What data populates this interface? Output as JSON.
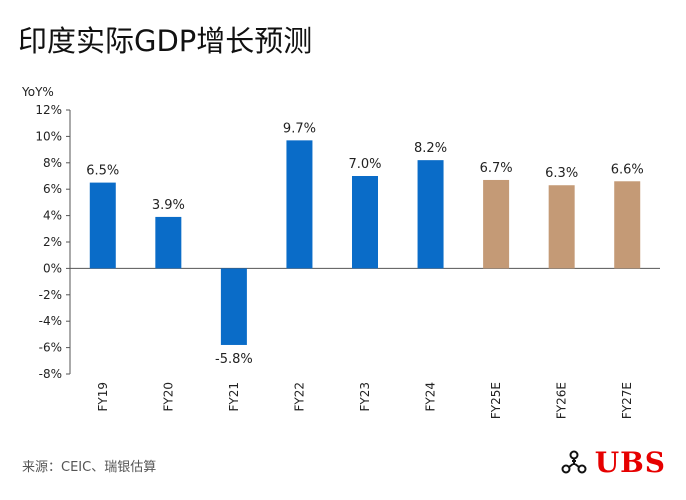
{
  "title": "印度实际GDP增长预测",
  "source": "来源：CEIC、瑞银估算",
  "brand": {
    "name": "UBS",
    "color": "#e60000"
  },
  "colors": {
    "actual": "#0a6cc8",
    "forecast": "#c49a76"
  },
  "chart_data": {
    "type": "bar",
    "ylabel": "YoY%",
    "ylim": [
      -8,
      12
    ],
    "yticks": [
      12,
      10,
      8,
      6,
      4,
      2,
      0,
      -2,
      -4,
      -6,
      -8
    ],
    "ytick_labels": [
      "12%",
      "10%",
      "8%",
      "6%",
      "4%",
      "2%",
      "0%",
      "-2%",
      "-4%",
      "-6%",
      "-8%"
    ],
    "categories": [
      "FY19",
      "FY20",
      "FY21",
      "FY22",
      "FY23",
      "FY24",
      "FY25E",
      "FY26E",
      "FY27E"
    ],
    "values": [
      6.5,
      3.9,
      -5.8,
      9.7,
      7.0,
      8.2,
      6.7,
      6.3,
      6.6
    ],
    "value_labels": [
      "6.5%",
      "3.9%",
      "-5.8%",
      "9.7%",
      "7.0%",
      "8.2%",
      "6.7%",
      "6.3%",
      "6.6%"
    ],
    "is_forecast": [
      false,
      false,
      false,
      false,
      false,
      false,
      true,
      true,
      true
    ],
    "grid": false,
    "legend": "none"
  }
}
